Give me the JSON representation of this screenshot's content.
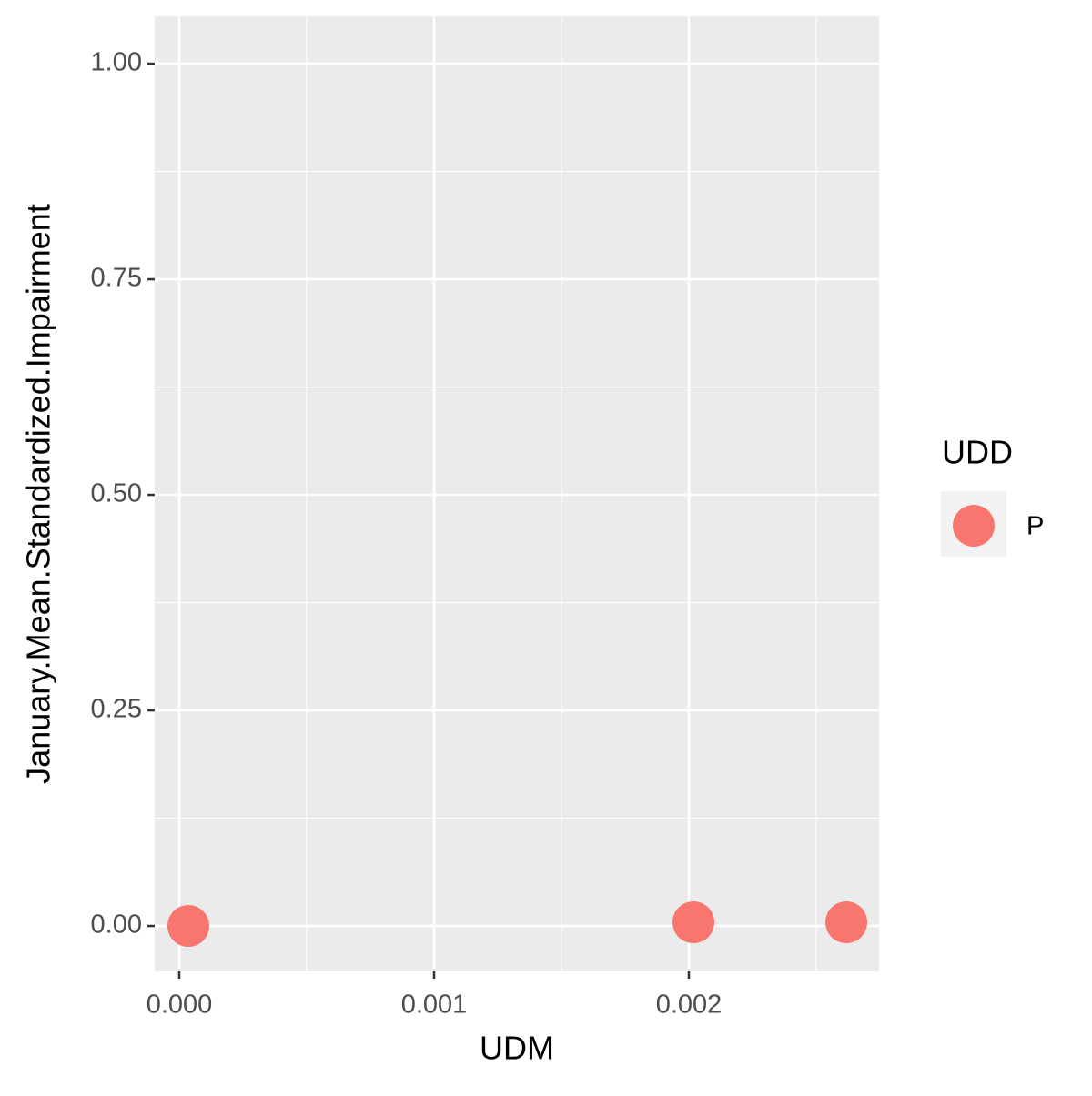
{
  "chart_data": {
    "type": "scatter",
    "x_label": "UDM",
    "y_label": "January.Mean.Standardized.Impairment",
    "legend_title": "UDD",
    "legend_position": "right",
    "grid": true,
    "xlim": [
      -9.64e-05,
      0.0027464
    ],
    "ylim": [
      -0.0527,
      1.0549
    ],
    "xticks": [
      {
        "value": 0,
        "label": "0.000"
      },
      {
        "value": 0.001,
        "label": "0.001"
      },
      {
        "value": 0.002,
        "label": "0.002"
      }
    ],
    "yticks": [
      {
        "value": 0,
        "label": "0.00"
      },
      {
        "value": 0.25,
        "label": "0.25"
      },
      {
        "value": 0.5,
        "label": "0.50"
      },
      {
        "value": 0.75,
        "label": "0.75"
      },
      {
        "value": 1,
        "label": "1.00"
      }
    ],
    "series": [
      {
        "name": "P",
        "color": "#f8766d",
        "x": [
          3.57e-05,
          0.002018,
          0.002618
        ],
        "values": [
          0,
          0.0042,
          0.0042
        ]
      }
    ]
  }
}
